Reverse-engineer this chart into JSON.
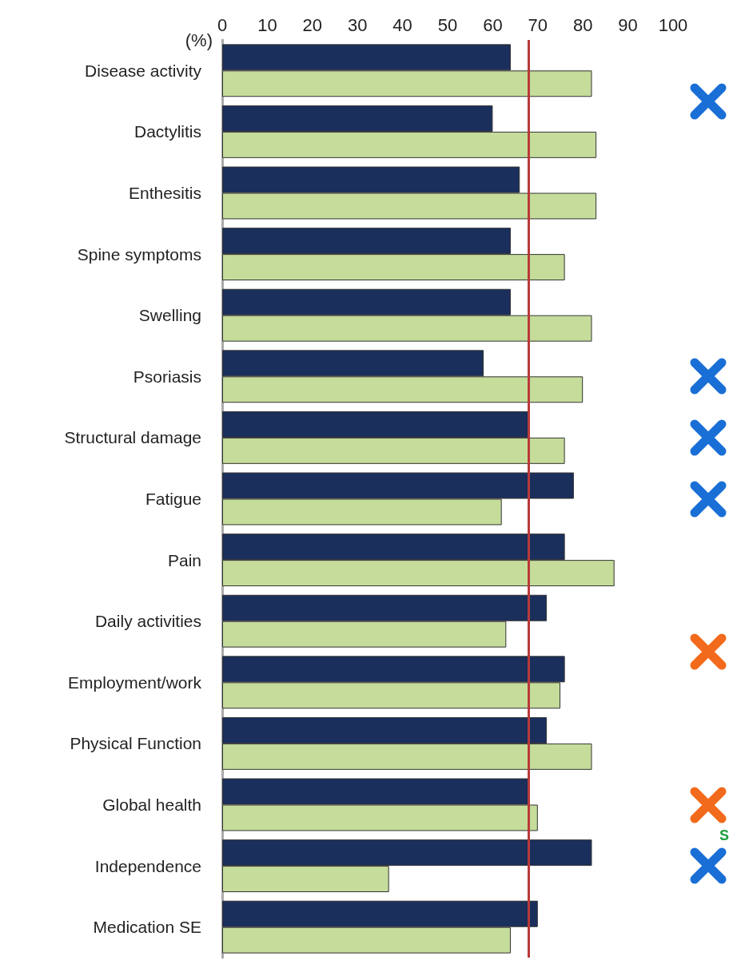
{
  "chart_data": {
    "type": "bar",
    "orientation": "horizontal",
    "xlabel": "(%)",
    "categories": [
      "Disease activity",
      "Dactylitis",
      "Enthesitis",
      "Spine symptoms",
      "Swelling",
      "Psoriasis",
      "Structural damage",
      "Fatigue",
      "Pain",
      "Daily activities",
      "Employment/work",
      "Physical Function",
      "Global health",
      "Independence",
      "Medication SE"
    ],
    "series": [
      {
        "color": "#1b2f5c",
        "values": [
          64,
          60,
          66,
          64,
          64,
          58,
          68,
          78,
          76,
          72,
          76,
          72,
          68,
          82,
          70
        ]
      },
      {
        "color": "#c5dc9b",
        "values": [
          82,
          83,
          83,
          76,
          82,
          80,
          76,
          62,
          87,
          63,
          75,
          82,
          70,
          37,
          64
        ]
      }
    ],
    "xlim": [
      0,
      100
    ],
    "xticks": [
      0,
      10,
      20,
      30,
      40,
      50,
      60,
      70,
      80,
      90,
      100
    ],
    "ref_lines": [
      {
        "axis": "x",
        "value": 68,
        "color": "#b83a3a"
      }
    ],
    "annotations": [
      "S"
    ],
    "grid": false
  }
}
